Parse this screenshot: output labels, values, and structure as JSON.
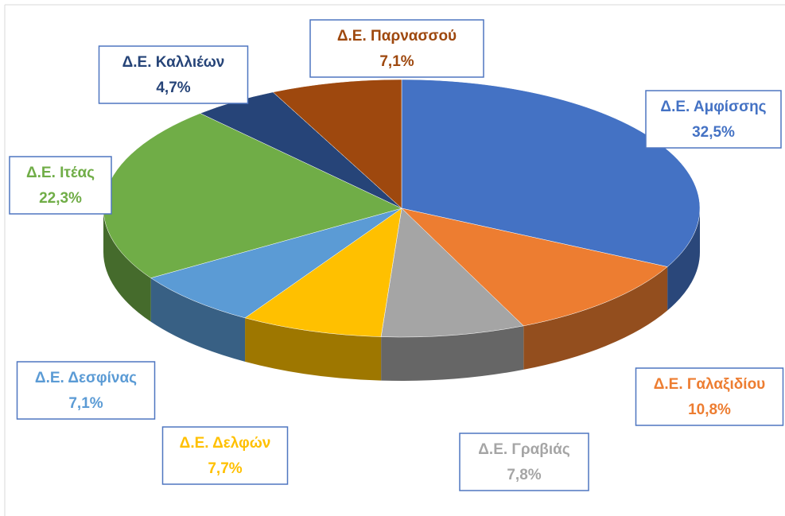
{
  "chart_data": {
    "type": "pie",
    "categories": [
      "Δ.Ε. Αμφίσσης",
      "Δ.Ε. Γαλαξιδίου",
      "Δ.Ε. Γραβιάς",
      "Δ.Ε. Δελφών",
      "Δ.Ε. Δεσφίνας",
      "Δ.Ε. Ιτέας",
      "Δ.Ε. Καλλιέων",
      "Δ.Ε. Παρνασσού"
    ],
    "values": [
      32.5,
      10.8,
      7.8,
      7.7,
      7.1,
      22.3,
      4.7,
      7.1
    ],
    "value_labels": [
      "32,5%",
      "10,8%",
      "7,8%",
      "7,7%",
      "7,1%",
      "22,3%",
      "4,7%",
      "7,1%"
    ],
    "colors": [
      "#4472c4",
      "#ed7d31",
      "#a5a5a5",
      "#ffc000",
      "#5b9bd5",
      "#70ad47",
      "#264478",
      "#9e480e"
    ]
  }
}
